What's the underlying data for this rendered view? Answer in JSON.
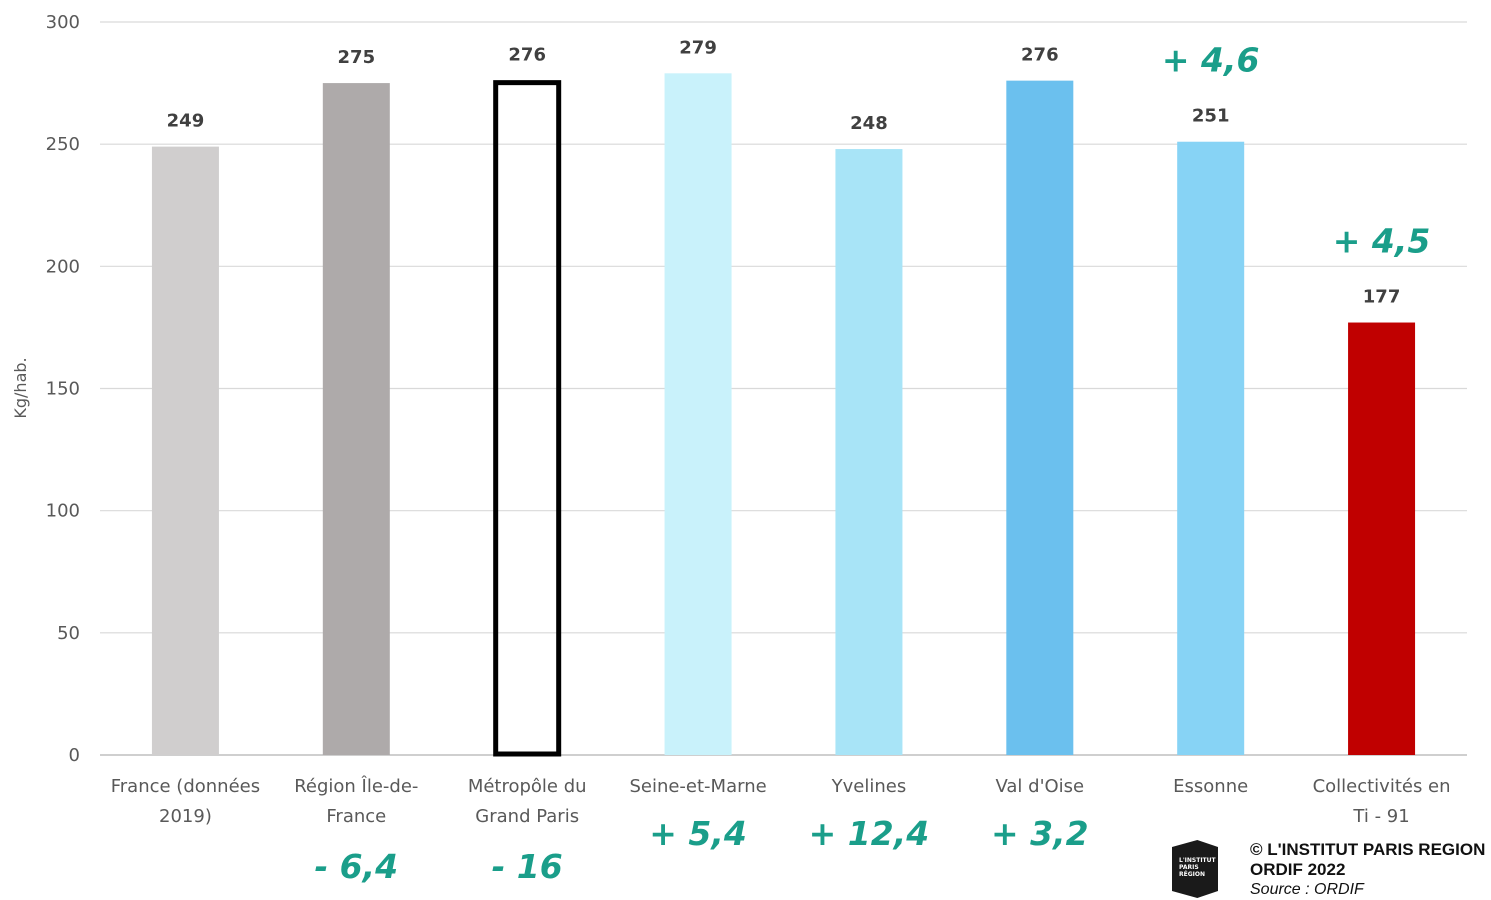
{
  "chart_data": {
    "type": "bar",
    "ylabel": "Kg/hab.",
    "ylim": [
      0,
      300
    ],
    "yticks": [
      "0",
      "50",
      "100",
      "150",
      "200",
      "250",
      "300"
    ],
    "grid": true,
    "categories": [
      [
        "France (données",
        "2019)"
      ],
      [
        "Région Île-de-",
        "France"
      ],
      [
        "Métropôle du",
        "Grand Paris"
      ],
      [
        "Seine-et-Marne"
      ],
      [
        "Yvelines"
      ],
      [
        "Val d'Oise"
      ],
      [
        "Essonne"
      ],
      [
        "Collectivités en",
        "Ti - 91"
      ]
    ],
    "values": [
      249,
      275,
      276,
      279,
      248,
      276,
      251,
      177
    ],
    "value_labels": [
      "249",
      "275",
      "276",
      "279",
      "248",
      "276",
      "251",
      "177"
    ],
    "bar_colors": [
      "#d0cece",
      "#aeaaaa",
      "none",
      "#c9f2fb",
      "#a8e4f7",
      "#6bc0ee",
      "#87d3f5",
      "#c00000"
    ],
    "bar_outline": [
      null,
      null,
      "#000000",
      null,
      null,
      null,
      null,
      null
    ],
    "annotations": [
      {
        "category": 1,
        "text": "- 6,4",
        "placement": "below-axis-low"
      },
      {
        "category": 2,
        "text": "- 16",
        "placement": "below-axis-low"
      },
      {
        "category": 3,
        "text": "+ 5,4",
        "placement": "below-axis"
      },
      {
        "category": 4,
        "text": "+ 12,4",
        "placement": "below-axis"
      },
      {
        "category": 5,
        "text": "+ 3,2",
        "placement": "below-axis"
      },
      {
        "category": 6,
        "text": "+ 4,6",
        "placement": "above-bar"
      },
      {
        "category": 7,
        "text": "+ 4,5",
        "placement": "above-bar"
      }
    ],
    "annotation_color": "#1a9e8a"
  },
  "credit": {
    "logo_icon": "institut-paris-region-logo-icon",
    "logo_text": [
      "L'INSTITUT",
      "PARIS",
      "RÉGION"
    ],
    "line1": "© L'INSTITUT PARIS REGION",
    "line2": "ORDIF 2022",
    "line3": "Source : ORDIF"
  }
}
